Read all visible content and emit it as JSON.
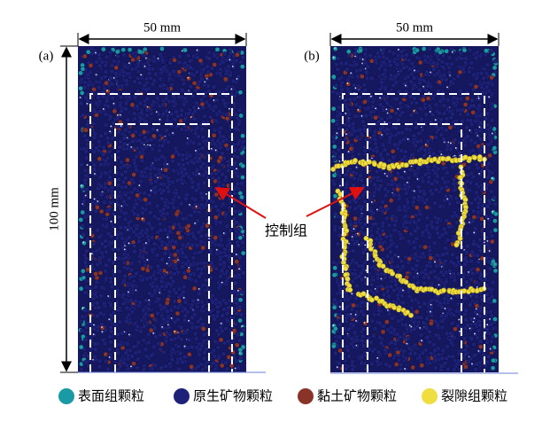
{
  "panels": [
    {
      "label": "(a)",
      "width": "50 mm"
    },
    {
      "label": "(b)",
      "width": "50 mm"
    }
  ],
  "height_label": "100 mm",
  "annotation": "控制组",
  "legend": [
    {
      "label": "表面组颗粒",
      "color": "#1a9aa5"
    },
    {
      "label": "原生矿物颗粒",
      "color": "#1e2178"
    },
    {
      "label": "黏土矿物颗粒",
      "color": "#8a3328"
    },
    {
      "label": "裂隙组颗粒",
      "color": "#f0dd40"
    }
  ]
}
